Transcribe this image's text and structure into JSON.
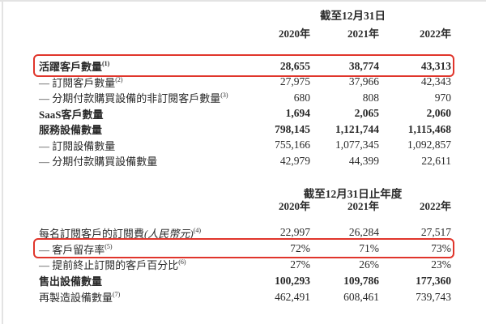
{
  "colors": {
    "highlight_box": "#e0352b",
    "text": "#2a2a2a",
    "scan_edge": "#e3e3e3"
  },
  "table1": {
    "period_header": "截至12月31日",
    "years": [
      "2020年",
      "2021年",
      "2022年"
    ],
    "rows": [
      {
        "label": "活躍客戶數量",
        "sup": "(1)",
        "bold": true,
        "highlight": true,
        "values": [
          "28,655",
          "38,774",
          "43,313"
        ]
      },
      {
        "label": "— 訂閱客戶數量",
        "sup": "(2)",
        "values": [
          "27,975",
          "37,966",
          "42,343"
        ]
      },
      {
        "label": "— 分期付款購買設備的非訂閱客戶數量",
        "sup": "(3)",
        "values": [
          "680",
          "808",
          "970"
        ]
      },
      {
        "label": "SaaS客戶數量",
        "bold": true,
        "values": [
          "1,694",
          "2,065",
          "2,060"
        ]
      },
      {
        "label": "服務設備數量",
        "bold": true,
        "values": [
          "798,145",
          "1,121,744",
          "1,115,468"
        ]
      },
      {
        "label": "— 訂閱設備數量",
        "values": [
          "755,166",
          "1,077,345",
          "1,092,857"
        ]
      },
      {
        "label": "— 分期付款購買設備數量",
        "values": [
          "42,979",
          "44,399",
          "22,611"
        ]
      }
    ]
  },
  "table2": {
    "period_header": "截至12月31日止年度",
    "years": [
      "2020年",
      "2021年",
      "2022年"
    ],
    "rows": [
      {
        "label": "每名訂閱客戶的訂閱費",
        "label_italic": "(人民幣元)",
        "sup": "(4)",
        "values": [
          "22,997",
          "26,284",
          "27,517"
        ]
      },
      {
        "label": "— 客戶留存率",
        "sup": "(5)",
        "highlight": true,
        "values": [
          "72%",
          "71%",
          "73%"
        ]
      },
      {
        "label": "— 提前終止訂閱的客戶百分比",
        "sup": "(6)",
        "values": [
          "27%",
          "26%",
          "23%"
        ]
      },
      {
        "label": "售出設備數量",
        "bold": true,
        "values": [
          "100,293",
          "109,786",
          "177,360"
        ]
      },
      {
        "label": "再製造設備數量",
        "sup": "(7)",
        "values": [
          "462,491",
          "608,461",
          "739,743"
        ]
      }
    ]
  }
}
